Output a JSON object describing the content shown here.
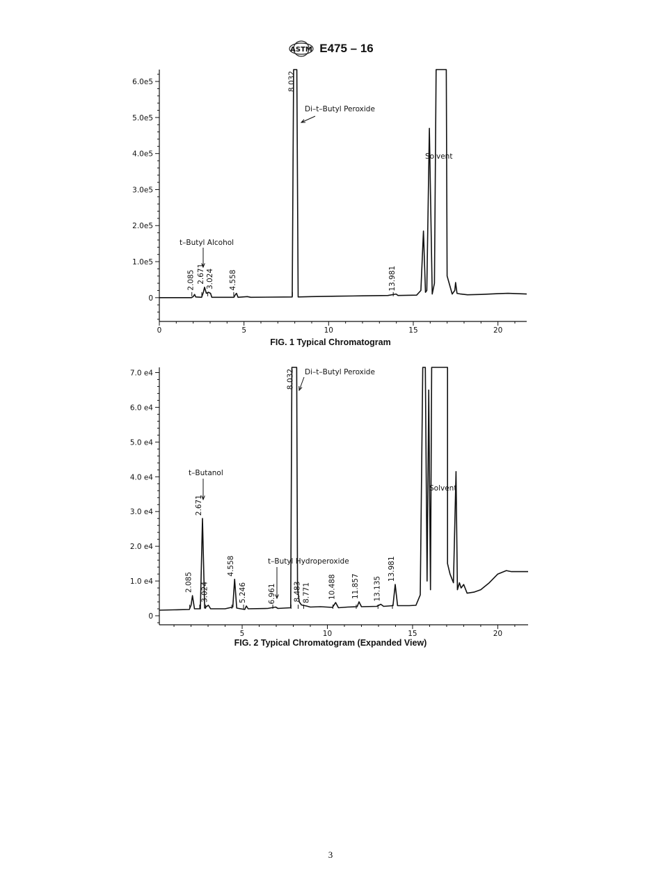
{
  "header": {
    "logo_text": "ASTM",
    "doc_id": "E475 – 16"
  },
  "page_number": "3",
  "chart_data": [
    {
      "type": "line",
      "title": "FIG. 1 Typical Chromatogram",
      "xlabel": "",
      "ylabel": "",
      "xlim": [
        0,
        21.7
      ],
      "ylim": [
        -66000,
        633000
      ],
      "xticks": [
        "0",
        "5",
        "10",
        "15",
        "20"
      ],
      "xtick_values": [
        0,
        5,
        10,
        15,
        20
      ],
      "yticks": [
        "0",
        "1.0e5",
        "2.0e5",
        "3.0e5",
        "4.0e5",
        "5.0e5",
        "6.0e5"
      ],
      "ytick_values": [
        0,
        100000,
        200000,
        300000,
        400000,
        500000,
        600000
      ],
      "series": [
        {
          "name": "signal",
          "points": [
            [
              0,
              0
            ],
            [
              1.9,
              0
            ],
            [
              2.0,
              3000
            ],
            [
              2.085,
              9000
            ],
            [
              2.15,
              2000
            ],
            [
              2.5,
              1000
            ],
            [
              2.6,
              15000
            ],
            [
              2.671,
              29000
            ],
            [
              2.78,
              12000
            ],
            [
              2.9,
              15000
            ],
            [
              3.024,
              12000
            ],
            [
              3.1,
              1000
            ],
            [
              4.4,
              1000
            ],
            [
              4.5,
              9000
            ],
            [
              4.558,
              12000
            ],
            [
              4.65,
              1000
            ],
            [
              5.2,
              3000
            ],
            [
              5.4,
              1000
            ],
            [
              7.85,
              2000
            ],
            [
              7.93,
              633000
            ],
            [
              8.12,
              633000
            ],
            [
              8.2,
              2000
            ],
            [
              9,
              3000
            ],
            [
              10.5,
              4000
            ],
            [
              12,
              5000
            ],
            [
              13.5,
              6000
            ],
            [
              13.981,
              10000
            ],
            [
              14.1,
              6000
            ],
            [
              15.2,
              7000
            ],
            [
              15.45,
              20000
            ],
            [
              15.6,
              185000
            ],
            [
              15.72,
              15000
            ],
            [
              15.8,
              20000
            ],
            [
              15.95,
              470000
            ],
            [
              16.12,
              10000
            ],
            [
              16.25,
              40000
            ],
            [
              16.35,
              633000
            ],
            [
              16.95,
              633000
            ],
            [
              17.0,
              60000
            ],
            [
              17.3,
              10000
            ],
            [
              17.45,
              20000
            ],
            [
              17.5,
              42000
            ],
            [
              17.58,
              12000
            ],
            [
              17.8,
              10000
            ],
            [
              18.2,
              8000
            ],
            [
              19,
              9000
            ],
            [
              20,
              11000
            ],
            [
              20.6,
              12000
            ],
            [
              21.7,
              10000
            ]
          ]
        }
      ],
      "peak_labels": [
        {
          "text": "2.085",
          "x": 2.085,
          "y": 12000
        },
        {
          "text": "2.671",
          "x": 2.671,
          "y": 29000
        },
        {
          "text": "3.024",
          "x": 3.024,
          "y": 15000
        },
        {
          "text": "4.558",
          "x": 4.558,
          "y": 12000
        },
        {
          "text": "8.032",
          "x": 8.032,
          "y": 633000
        },
        {
          "text": "13.981",
          "x": 13.981,
          "y": 10000
        }
      ],
      "annotations": [
        {
          "text": "t–Butyl Alcohol",
          "target_x": 2.671
        },
        {
          "text": "Di–t–Butyl Peroxide",
          "target_x": 8.032
        },
        {
          "text": "Solvent",
          "target_x": 16.3
        }
      ]
    },
    {
      "type": "line",
      "title": "FIG. 2 Typical Chromatogram (Expanded View)",
      "xlabel": "",
      "ylabel": "",
      "xlim": [
        0.14,
        21.78
      ],
      "ylim": [
        -2600,
        71500
      ],
      "xticks": [
        "5",
        "10",
        "15",
        "20"
      ],
      "xtick_values": [
        5,
        10,
        15,
        20
      ],
      "yticks": [
        "0",
        "1.0 e4",
        "2.0 e4",
        "3.0 e4",
        "4.0 e4",
        "5.0 e4",
        "6.0 e4",
        "7.0 e4"
      ],
      "ytick_values": [
        0,
        10000,
        20000,
        30000,
        40000,
        50000,
        60000,
        70000
      ],
      "series": [
        {
          "name": "signal",
          "points": [
            [
              0.14,
              1600
            ],
            [
              1,
              1700
            ],
            [
              1.9,
              1800
            ],
            [
              2.0,
              3000
            ],
            [
              2.085,
              5800
            ],
            [
              2.2,
              2000
            ],
            [
              2.55,
              2000
            ],
            [
              2.671,
              28000
            ],
            [
              2.8,
              2200
            ],
            [
              2.95,
              2800
            ],
            [
              3.024,
              3000
            ],
            [
              3.15,
              2000
            ],
            [
              4.0,
              2000
            ],
            [
              4.45,
              2500
            ],
            [
              4.558,
              10500
            ],
            [
              4.68,
              2200
            ],
            [
              5.15,
              1800
            ],
            [
              5.246,
              2800
            ],
            [
              5.35,
              2000
            ],
            [
              6.5,
              2100
            ],
            [
              6.961,
              2500
            ],
            [
              7.1,
              2100
            ],
            [
              7.85,
              2300
            ],
            [
              7.92,
              71500
            ],
            [
              8.2,
              71500
            ],
            [
              8.25,
              8000
            ],
            [
              8.35,
              4000
            ],
            [
              8.483,
              3100
            ],
            [
              8.771,
              2800
            ],
            [
              9.0,
              2500
            ],
            [
              9.6,
              2600
            ],
            [
              10.3,
              2400
            ],
            [
              10.488,
              3800
            ],
            [
              10.65,
              2300
            ],
            [
              11.2,
              2500
            ],
            [
              11.75,
              2600
            ],
            [
              11.857,
              4000
            ],
            [
              12.0,
              2600
            ],
            [
              12.9,
              2700
            ],
            [
              13.135,
              3300
            ],
            [
              13.3,
              2700
            ],
            [
              13.85,
              2900
            ],
            [
              13.981,
              9000
            ],
            [
              14.12,
              2900
            ],
            [
              14.8,
              2900
            ],
            [
              15.2,
              3000
            ],
            [
              15.45,
              6000
            ],
            [
              15.6,
              71500
            ],
            [
              15.75,
              71500
            ],
            [
              15.85,
              10000
            ],
            [
              15.95,
              65000
            ],
            [
              16.05,
              7500
            ],
            [
              16.12,
              71500
            ],
            [
              16.3,
              71500
            ],
            [
              16.22,
              71500
            ],
            [
              16.35,
              71500
            ],
            [
              17.05,
              71500
            ],
            [
              17.05,
              15000
            ],
            [
              17.2,
              12000
            ],
            [
              17.4,
              9500
            ],
            [
              17.55,
              41500
            ],
            [
              17.63,
              7500
            ],
            [
              17.75,
              9500
            ],
            [
              17.85,
              8000
            ],
            [
              18.0,
              9000
            ],
            [
              18.2,
              6500
            ],
            [
              18.6,
              6800
            ],
            [
              19.0,
              7500
            ],
            [
              19.5,
              9500
            ],
            [
              20.0,
              12000
            ],
            [
              20.5,
              13000
            ],
            [
              20.8,
              12700
            ],
            [
              21.78,
              12700
            ]
          ]
        }
      ],
      "peak_labels": [
        {
          "text": "2.085",
          "x": 2.085,
          "y": 5800
        },
        {
          "text": "2.671",
          "x": 2.671,
          "y": 28000
        },
        {
          "text": "3.024",
          "x": 3.024,
          "y": 3000
        },
        {
          "text": "4.558",
          "x": 4.558,
          "y": 10500
        },
        {
          "text": "5.246",
          "x": 5.246,
          "y": 2800
        },
        {
          "text": "6.961",
          "x": 6.961,
          "y": 2500
        },
        {
          "text": "8.032",
          "x": 8.032,
          "y": 71500
        },
        {
          "text": "8.483",
          "x": 8.45,
          "y": 3100
        },
        {
          "text": "8.771",
          "x": 8.771,
          "y": 2800
        },
        {
          "text": "10.488",
          "x": 10.488,
          "y": 3800
        },
        {
          "text": "11.857",
          "x": 11.857,
          "y": 4000
        },
        {
          "text": "13.135",
          "x": 13.135,
          "y": 3300
        },
        {
          "text": "13.981",
          "x": 13.981,
          "y": 9000
        }
      ],
      "annotations": [
        {
          "text": "Di–t–Butyl Peroxide",
          "target_x": 8.2
        },
        {
          "text": "t–Butanol",
          "target_x": 2.671
        },
        {
          "text": "Solvent",
          "target_x": 16.6
        },
        {
          "text": "t–Butyl Hydroperoxide",
          "target_x": 6.961
        }
      ]
    }
  ]
}
